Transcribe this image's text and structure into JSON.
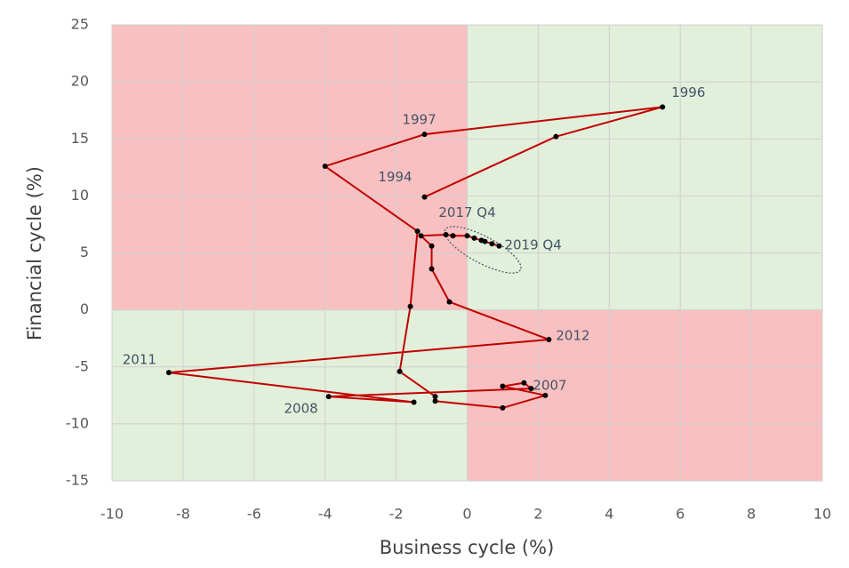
{
  "chart_data": {
    "type": "line",
    "x_label": "Business cycle (%)",
    "y_label": "Financial cycle (%)",
    "xlim": [
      -10,
      10
    ],
    "ylim": [
      -15,
      25
    ],
    "xticks": [
      -10,
      -8,
      -6,
      -4,
      -2,
      0,
      2,
      4,
      6,
      8,
      10
    ],
    "yticks": [
      -15,
      -10,
      -5,
      0,
      5,
      10,
      15,
      20,
      25
    ],
    "grid": true,
    "quadrant_colors": {
      "negative": "#f8c0c0",
      "positive": "#e2efda"
    },
    "series": [
      {
        "color": "#c00000",
        "marker_color": "#000000",
        "x": [
          -1.2,
          2.5,
          5.5,
          -1.2,
          -4.0,
          -1.4,
          -1.6,
          -1.9,
          -0.9,
          -0.9,
          1.0,
          2.2,
          1.0,
          1.6,
          1.8,
          -3.9,
          -1.5,
          -8.4,
          2.3,
          -0.5,
          -1.0,
          -1.0,
          -1.3,
          -0.6,
          -0.4,
          0.0,
          0.2,
          0.4,
          0.5,
          0.7,
          0.9
        ],
        "values": [
          9.9,
          15.2,
          17.8,
          15.4,
          12.6,
          6.9,
          0.3,
          -5.4,
          -7.6,
          -8.0,
          -8.6,
          -7.5,
          -6.7,
          -6.4,
          -6.9,
          -7.6,
          -8.1,
          -5.5,
          -2.6,
          0.7,
          3.6,
          5.6,
          6.5,
          6.6,
          6.5,
          6.5,
          6.3,
          6.1,
          6.0,
          5.8,
          5.6
        ],
        "point_labels": [
          "1994",
          null,
          "1996",
          "1997",
          null,
          null,
          null,
          null,
          null,
          null,
          null,
          null,
          null,
          null,
          "2007",
          "2008",
          null,
          "2011",
          "2012",
          null,
          null,
          null,
          null,
          null,
          "2017 Q4",
          null,
          null,
          null,
          null,
          null,
          "2019 Q4"
        ]
      }
    ]
  }
}
